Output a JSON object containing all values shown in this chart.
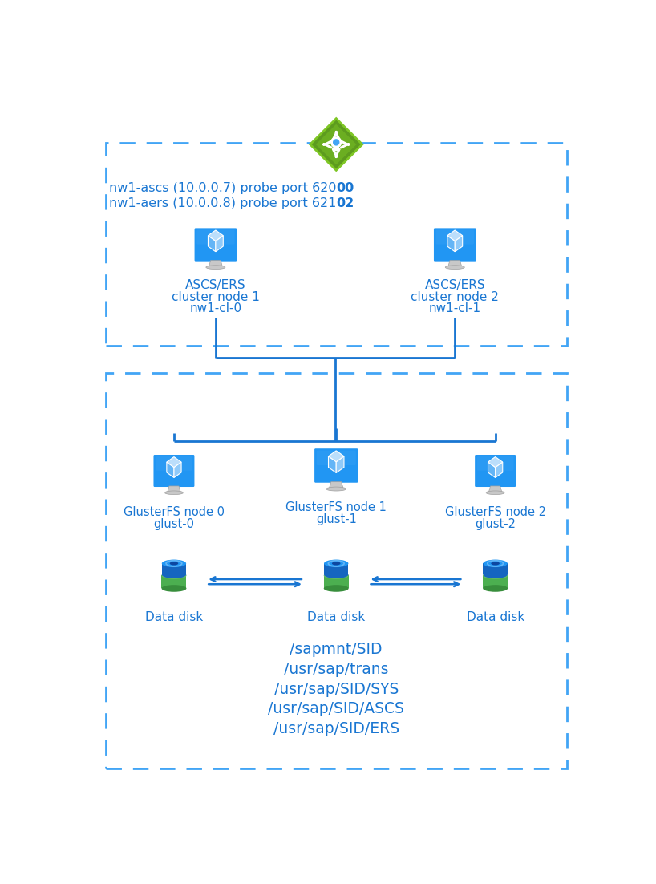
{
  "bg_color": "#ffffff",
  "line_color": "#1976d2",
  "dashed_color": "#42a5f5",
  "text_color": "#1976d2",
  "node1_lines": [
    "ASCS/ERS",
    "cluster node 1",
    "nw1-cl-0"
  ],
  "node2_lines": [
    "ASCS/ERS",
    "cluster node 2",
    "nw1-cl-1"
  ],
  "gnode0_lines": [
    "GlusterFS node 0",
    "glust-0"
  ],
  "gnode1_lines": [
    "GlusterFS node 1",
    "glust-1"
  ],
  "gnode2_lines": [
    "GlusterFS node 2",
    "glust-2"
  ],
  "disk_label": "Data disk",
  "fs_paths": [
    "/sapmnt/SID",
    "/usr/sap/trans",
    "/usr/sap/SID/SYS",
    "/usr/sap/SID/ASCS",
    "/usr/sap/SID/ERS"
  ],
  "green_diamond_color": "#5d9b1e",
  "green_diamond_light": "#7ec625",
  "disk_blue_top": "#2196f3",
  "disk_blue_mid": "#1565c0",
  "disk_green_body": "#4caf50",
  "disk_green_light": "#66bb6a",
  "monitor_blue": "#2196f3",
  "monitor_blue_light": "#42a5f5",
  "monitor_blue_dark": "#1565c0",
  "monitor_stand": "#c0c0c0",
  "title_line1_plain": "nw1-ascs (10.0.0.7) probe port 620",
  "title_line1_bold": "00",
  "title_line2_plain": "nw1-aers (10.0.0.8) probe port 621",
  "title_line2_bold": "02"
}
